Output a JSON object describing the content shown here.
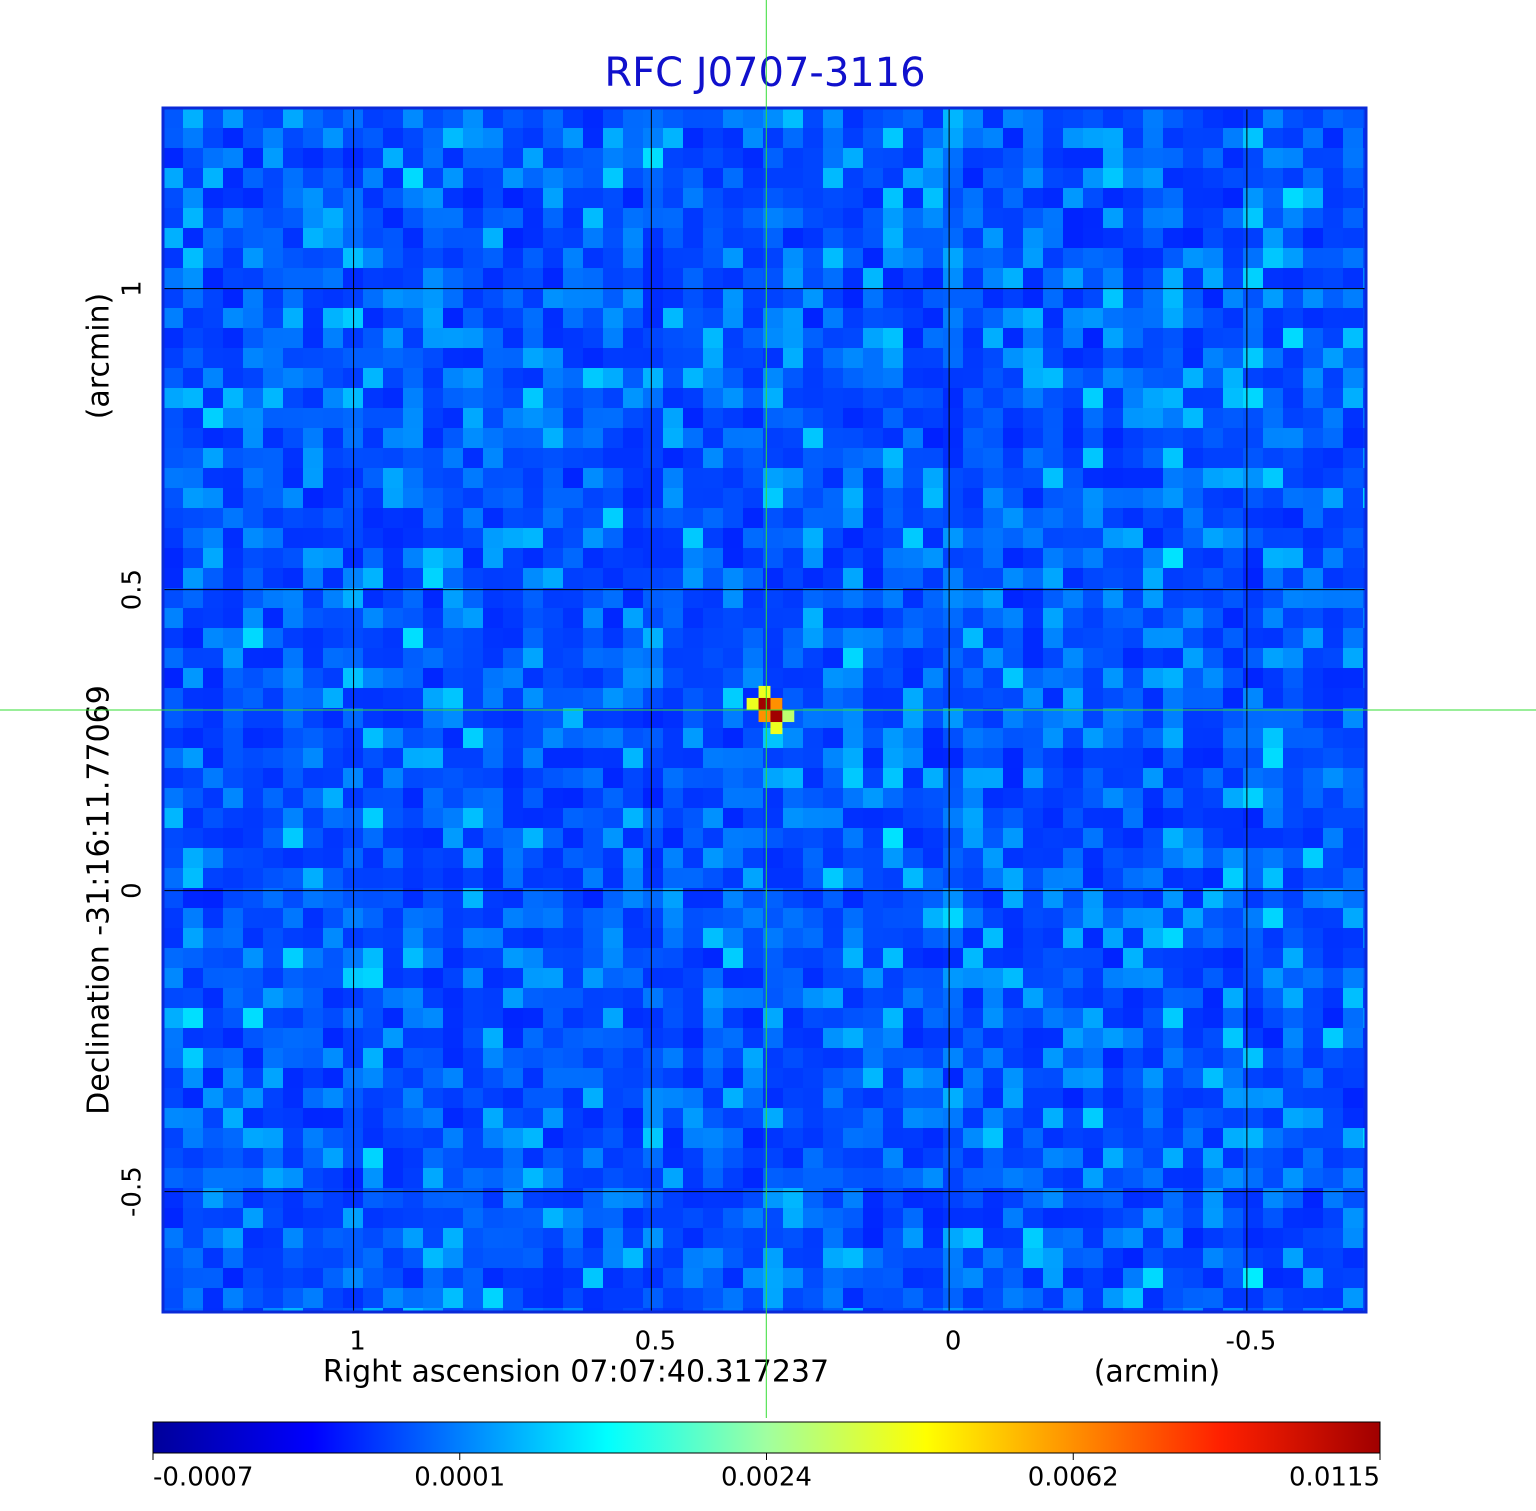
{
  "chart_data": {
    "type": "image",
    "title": "RFC J0707-3116",
    "xlabel": "Right ascension  07:07:40.317237",
    "xunit": "(arcmin)",
    "ylabel": "Declination  -31:16:11.77069",
    "yunit": "(arcmin)",
    "xlim": [
      1.32,
      -0.7
    ],
    "ylim": [
      -0.7,
      1.3
    ],
    "xticks": [
      1.0,
      0.5,
      0.0,
      -0.5
    ],
    "yticks": [
      1.0,
      0.5,
      0.0,
      -0.5
    ],
    "grid": true,
    "crosshair": {
      "x": 0.307,
      "y": 0.3,
      "color": "#33dd33"
    },
    "x": [
      0.31,
      0.29,
      0.31,
      0.29,
      0.33,
      0.29,
      0.31,
      0.27
    ],
    "y": [
      0.31,
      0.29,
      0.29,
      0.31,
      0.31,
      0.27,
      0.33,
      0.29
    ],
    "values": [
      0.0115,
      0.0115,
      0.0062,
      0.0062,
      0.004,
      0.004,
      0.004,
      0.003
    ],
    "colorbar_ticks": [
      -0.0007,
      0.0001,
      0.0024,
      0.0062,
      0.0115
    ]
  }
}
